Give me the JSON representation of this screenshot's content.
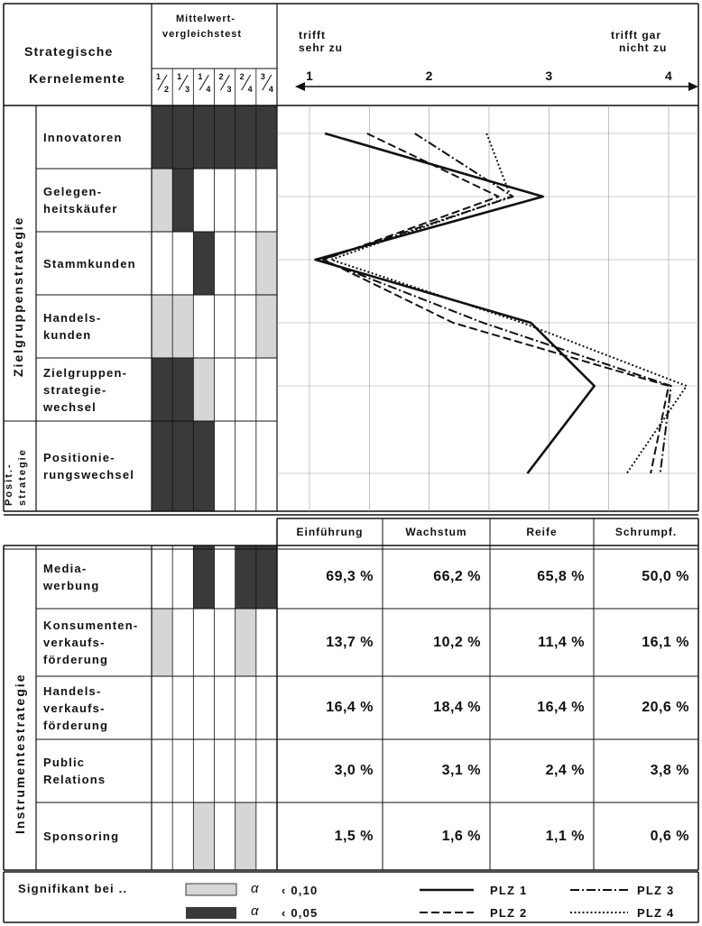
{
  "header": {
    "strategische": "Strategische",
    "kernelemente": "Kernelemente",
    "mittelwert_line1": "Mittelwert-",
    "mittelwert_line2": "vergleichstest",
    "test_columns": [
      {
        "num": "1",
        "den": "2"
      },
      {
        "num": "1",
        "den": "3"
      },
      {
        "num": "1",
        "den": "4"
      },
      {
        "num": "2",
        "den": "3"
      },
      {
        "num": "2",
        "den": "4"
      },
      {
        "num": "3",
        "den": "4"
      }
    ],
    "scale_left_line1": "trifft",
    "scale_left_line2": "sehr zu",
    "scale_right_line1": "trifft gar",
    "scale_right_line2": "nicht zu",
    "scale_ticks": [
      "1",
      "2",
      "3",
      "4"
    ]
  },
  "groups": {
    "zielgruppen": "Zielgruppenstrategie",
    "posit_line1": "Posit.-",
    "posit_line2": "strategie",
    "instrument": "Instrumentestrategie"
  },
  "ziel_rows": [
    {
      "lines": [
        "Innovatoren"
      ],
      "sig": [
        "d",
        "d",
        "d",
        "d",
        "d",
        "d"
      ]
    },
    {
      "lines": [
        "Gelegen-",
        "heitskäufer"
      ],
      "sig": [
        "l",
        "d",
        "",
        "",
        "",
        ""
      ]
    },
    {
      "lines": [
        "Stammkunden"
      ],
      "sig": [
        "",
        "",
        "d",
        "",
        "",
        "l"
      ]
    },
    {
      "lines": [
        "Handels-",
        "kunden"
      ],
      "sig": [
        "l",
        "l",
        "",
        "",
        "",
        "l"
      ]
    },
    {
      "lines": [
        "Zielgruppen-",
        "strategie-",
        "wechsel"
      ],
      "sig": [
        "d",
        "d",
        "l",
        "",
        "",
        ""
      ]
    },
    {
      "lines": [
        "Positionie-",
        "rungswechsel"
      ],
      "sig": [
        "d",
        "d",
        "d",
        "",
        "",
        ""
      ]
    }
  ],
  "phases": [
    "Einführung",
    "Wachstum",
    "Reife",
    "Schrumpf."
  ],
  "instrument_rows": [
    {
      "lines": [
        "Media-",
        "werbung"
      ],
      "sig": [
        "",
        "",
        "d",
        "",
        "d",
        "d"
      ],
      "values": [
        "69,3 %",
        "66,2 %",
        "65,8 %",
        "50,0 %"
      ]
    },
    {
      "lines": [
        "Konsumenten-",
        "verkaufs-",
        "förderung"
      ],
      "sig": [
        "l",
        "",
        "",
        "",
        "l",
        ""
      ],
      "values": [
        "13,7 %",
        "10,2 %",
        "11,4 %",
        "16,1 %"
      ]
    },
    {
      "lines": [
        "Handels-",
        "verkaufs-",
        "förderung"
      ],
      "sig": [
        "",
        "",
        "",
        "",
        "",
        ""
      ],
      "values": [
        "16,4 %",
        "18,4 %",
        "16,4 %",
        "20,6 %"
      ]
    },
    {
      "lines": [
        "Public",
        "Relations"
      ],
      "sig": [
        "",
        "",
        "",
        "",
        "",
        ""
      ],
      "values": [
        "3,0 %",
        "3,1 %",
        "2,4 %",
        "3,8 %"
      ]
    },
    {
      "lines": [
        "Sponsoring"
      ],
      "sig": [
        "",
        "",
        "l",
        "",
        "l",
        ""
      ],
      "values": [
        "1,5 %",
        "1,6 %",
        "1,1 %",
        "0,6 %"
      ]
    }
  ],
  "legend": {
    "title": "Signifikant bei ..",
    "alpha": "α",
    "light_label": "‹ 0,10",
    "dark_label": "‹ 0,05",
    "series_names": [
      "PLZ 1",
      "PLZ 2",
      "PLZ 3",
      "PLZ 4"
    ]
  },
  "colors": {
    "dark": "#3a3a3a",
    "light": "#d6d6d6",
    "ink": "#111111"
  },
  "chart_data": {
    "type": "line",
    "orientation": "horizontal-profile",
    "xlim": [
      1,
      4
    ],
    "x_ticks": [
      1,
      2,
      3,
      4
    ],
    "categories": [
      "Innovatoren",
      "Gelegenheitskäufer",
      "Stammkunden",
      "Handelskunden",
      "Zielgruppenstrategiewechsel",
      "Positionierungswechsel"
    ],
    "series": [
      {
        "name": "PLZ 1",
        "style": "solid",
        "values": [
          1.13,
          2.95,
          1.05,
          2.85,
          3.38,
          2.82
        ]
      },
      {
        "name": "PLZ 2",
        "style": "dashed",
        "values": [
          1.48,
          2.58,
          1.12,
          2.2,
          4.0,
          3.85
        ]
      },
      {
        "name": "PLZ 3",
        "style": "dashdot",
        "values": [
          1.88,
          2.7,
          1.1,
          2.45,
          4.02,
          3.93
        ]
      },
      {
        "name": "PLZ 4",
        "style": "dotted",
        "values": [
          2.48,
          2.68,
          1.18,
          2.78,
          4.15,
          3.65
        ]
      }
    ]
  }
}
